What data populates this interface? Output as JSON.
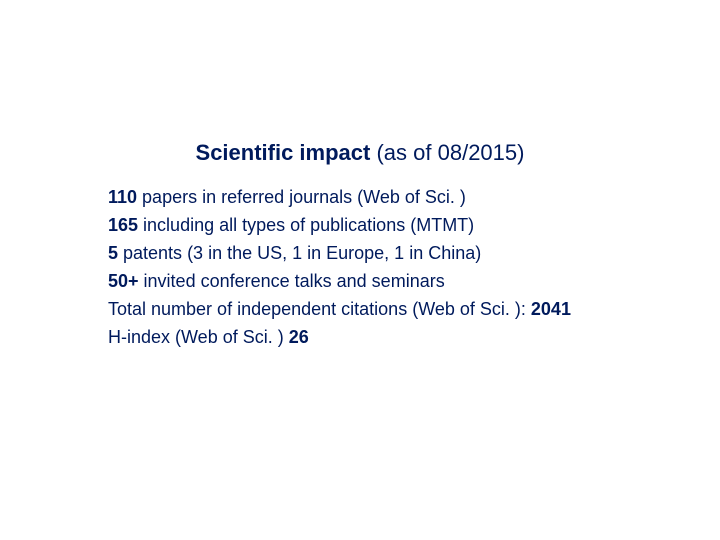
{
  "colors": {
    "text": "#001a5c",
    "background": "#ffffff"
  },
  "typography": {
    "title_fontsize": 22,
    "body_fontsize": 18,
    "font_family": "Arial"
  },
  "title": {
    "bold": "Scientific impact",
    "rest": " (as of 08/2015)"
  },
  "lines": {
    "l1": {
      "bold": "110",
      "rest": " papers in referred journals (Web of Sci. )"
    },
    "l2": {
      "bold": "165",
      "rest": " including all types of publications (MTMT)"
    },
    "l3": {
      "bold": "5",
      "rest": " patents (3 in the US, 1 in Europe, 1 in China)"
    },
    "l4": {
      "bold": "50+",
      "rest": " invited conference talks and seminars"
    },
    "l5": {
      "pre": "Total number of independent citations (Web of Sci. ): ",
      "bold": "2041"
    },
    "l6": {
      "pre": "H-index (Web of Sci. ) ",
      "bold": "26"
    }
  }
}
